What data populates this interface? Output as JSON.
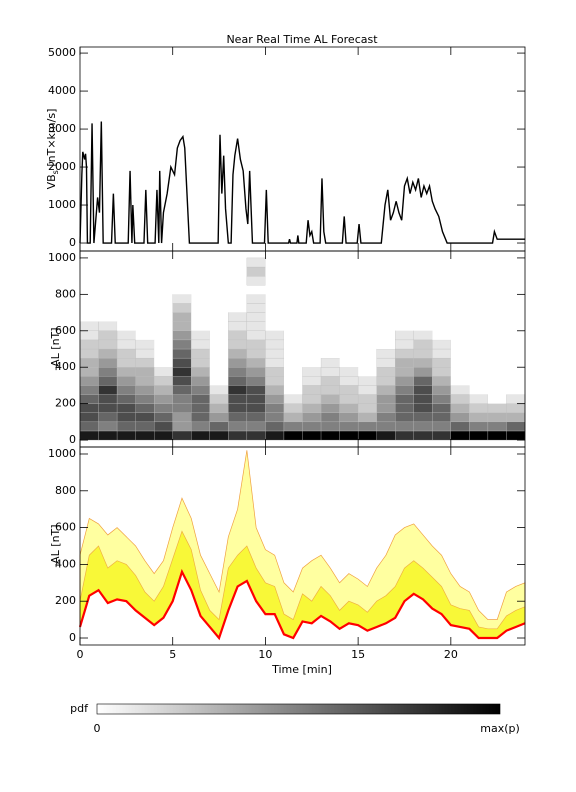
{
  "chart_data": [
    {
      "type": "line",
      "title": "Near Real Time AL Forecast",
      "ylabel": [
        "VB",
        "s",
        " [nT×km/s]"
      ],
      "color": "#000000",
      "xlim": [
        0,
        24
      ],
      "xticks": [
        0,
        5,
        10,
        15,
        20
      ],
      "ylim": [
        -210,
        5160
      ],
      "yticks": [
        0,
        1000,
        2000,
        3000,
        4000,
        5000
      ],
      "x": [
        0,
        0.1,
        0.15,
        0.25,
        0.3,
        0.35,
        0.4,
        0.55,
        0.65,
        0.75,
        0.85,
        0.95,
        1.05,
        1.15,
        1.25,
        1.7,
        1.8,
        1.9,
        2.6,
        2.7,
        2.8,
        2.85,
        2.95,
        3.45,
        3.55,
        3.65,
        4.05,
        4.15,
        4.25,
        4.3,
        4.4,
        4.5,
        4.7,
        4.9,
        5.1,
        5.25,
        5.4,
        5.55,
        5.65,
        5.75,
        5.9,
        7.45,
        7.55,
        7.65,
        7.75,
        7.85,
        8.0,
        8.15,
        8.25,
        8.35,
        8.5,
        8.65,
        8.8,
        8.95,
        9.05,
        9.15,
        9.3,
        9.95,
        10.05,
        10.15,
        11.25,
        11.3,
        11.35,
        11.7,
        11.75,
        11.8,
        12.2,
        12.3,
        12.4,
        12.5,
        12.6,
        12.95,
        13.05,
        13.15,
        13.25,
        14.15,
        14.25,
        14.35,
        14.95,
        15.05,
        15.15,
        16.25,
        16.45,
        16.6,
        16.75,
        16.9,
        17.05,
        17.2,
        17.35,
        17.5,
        17.65,
        17.8,
        17.95,
        18.1,
        18.25,
        18.4,
        18.55,
        18.7,
        18.85,
        19.0,
        19.15,
        19.35,
        19.55,
        19.8,
        22.25,
        22.35,
        22.5,
        24
      ],
      "values": [
        0,
        1800,
        2400,
        2200,
        2350,
        2000,
        0,
        0,
        3150,
        0,
        600,
        1200,
        800,
        3200,
        0,
        0,
        1300,
        0,
        0,
        1900,
        0,
        1000,
        0,
        0,
        1400,
        0,
        0,
        1400,
        0,
        1900,
        0,
        800,
        1300,
        2000,
        1800,
        2500,
        2700,
        2800,
        2500,
        1500,
        0,
        0,
        2850,
        1300,
        2300,
        900,
        0,
        0,
        1800,
        2300,
        2750,
        2200,
        1900,
        900,
        500,
        1900,
        0,
        0,
        1400,
        0,
        0,
        100,
        0,
        0,
        200,
        0,
        0,
        600,
        200,
        300,
        0,
        0,
        1700,
        300,
        0,
        0,
        700,
        0,
        0,
        500,
        0,
        0,
        1000,
        1400,
        600,
        800,
        1100,
        800,
        600,
        1500,
        1700,
        1300,
        1600,
        1400,
        1700,
        1200,
        1500,
        1300,
        1500,
        1100,
        900,
        700,
        300,
        0,
        0,
        300,
        100,
        100
      ]
    },
    {
      "type": "heatmap",
      "ylabel": "-AL [nT]",
      "xlim": [
        0,
        24
      ],
      "xticks": [
        0,
        5,
        10,
        15,
        20
      ],
      "ylim": [
        -38,
        1038
      ],
      "yticks": [
        0,
        200,
        400,
        600,
        800,
        1000
      ],
      "time_bins": [
        0,
        1,
        2,
        3,
        4,
        5,
        6,
        7,
        8,
        9,
        10,
        11,
        12,
        13,
        14,
        15,
        16,
        17,
        18,
        19,
        20,
        21,
        22,
        23,
        24
      ],
      "al_bins": [
        0,
        50,
        100,
        150,
        200,
        250,
        300,
        350,
        400,
        450,
        500,
        550,
        600,
        650,
        700,
        750,
        800,
        850,
        900,
        950,
        1000
      ],
      "pdf": [
        [
          0.9,
          0.6,
          0.7,
          0.7,
          0.6,
          0.5,
          0.4,
          0.3,
          0.3,
          0.2,
          0.2,
          0.1,
          0.1,
          0,
          0,
          0,
          0,
          0,
          0,
          0
        ],
        [
          0.9,
          0.5,
          0.6,
          0.7,
          0.7,
          0.8,
          0.6,
          0.5,
          0.4,
          0.3,
          0.2,
          0.2,
          0.1,
          0,
          0,
          0,
          0,
          0,
          0,
          0
        ],
        [
          0.9,
          0.6,
          0.7,
          0.7,
          0.6,
          0.5,
          0.4,
          0.3,
          0.2,
          0.2,
          0.1,
          0.1,
          0,
          0,
          0,
          0,
          0,
          0,
          0,
          0
        ],
        [
          0.9,
          0.6,
          0.7,
          0.6,
          0.5,
          0.4,
          0.3,
          0.3,
          0.2,
          0.1,
          0.1,
          0,
          0,
          0,
          0,
          0,
          0,
          0,
          0,
          0
        ],
        [
          0.9,
          0.7,
          0.6,
          0.5,
          0.4,
          0.3,
          0.2,
          0.1,
          0,
          0,
          0,
          0,
          0,
          0,
          0,
          0,
          0,
          0,
          0,
          0
        ],
        [
          0.8,
          0.4,
          0.4,
          0.5,
          0.5,
          0.6,
          0.7,
          0.8,
          0.7,
          0.6,
          0.5,
          0.4,
          0.3,
          0.3,
          0.2,
          0.1,
          0,
          0,
          0,
          0
        ],
        [
          0.9,
          0.5,
          0.6,
          0.6,
          0.6,
          0.5,
          0.4,
          0.3,
          0.2,
          0.2,
          0.1,
          0.1,
          0,
          0,
          0,
          0,
          0,
          0,
          0,
          0
        ],
        [
          0.9,
          0.6,
          0.4,
          0.3,
          0.2,
          0.1,
          0,
          0,
          0,
          0,
          0,
          0,
          0,
          0,
          0,
          0,
          0,
          0,
          0,
          0
        ],
        [
          0.8,
          0.5,
          0.6,
          0.7,
          0.7,
          0.8,
          0.6,
          0.5,
          0.4,
          0.3,
          0.2,
          0.2,
          0.1,
          0.1,
          0,
          0,
          0,
          0,
          0,
          0
        ],
        [
          0.8,
          0.5,
          0.6,
          0.7,
          0.7,
          0.7,
          0.5,
          0.4,
          0.3,
          0.2,
          0.2,
          0.1,
          0.1,
          0.1,
          0.1,
          0.1,
          0,
          0.1,
          0.2,
          0.1
        ],
        [
          0.9,
          0.6,
          0.5,
          0.5,
          0.4,
          0.3,
          0.2,
          0.2,
          0.1,
          0.1,
          0.1,
          0.1,
          0,
          0,
          0,
          0,
          0,
          0,
          0,
          0
        ],
        [
          1,
          0.5,
          0.3,
          0.2,
          0.1,
          0,
          0,
          0,
          0,
          0,
          0,
          0,
          0,
          0,
          0,
          0,
          0,
          0,
          0,
          0
        ],
        [
          1,
          0.5,
          0.4,
          0.3,
          0.2,
          0.2,
          0.1,
          0.1,
          0,
          0,
          0,
          0,
          0,
          0,
          0,
          0,
          0,
          0,
          0,
          0
        ],
        [
          1,
          0.5,
          0.5,
          0.4,
          0.3,
          0.2,
          0.2,
          0.1,
          0.1,
          0,
          0,
          0,
          0,
          0,
          0,
          0,
          0,
          0,
          0,
          0
        ],
        [
          1,
          0.5,
          0.4,
          0.3,
          0.2,
          0.2,
          0.1,
          0.1,
          0,
          0,
          0,
          0,
          0,
          0,
          0,
          0,
          0,
          0,
          0,
          0
        ],
        [
          1,
          0.5,
          0.3,
          0.2,
          0.2,
          0.1,
          0.1,
          0,
          0,
          0,
          0,
          0,
          0,
          0,
          0,
          0,
          0,
          0,
          0,
          0
        ],
        [
          0.9,
          0.5,
          0.5,
          0.4,
          0.4,
          0.3,
          0.2,
          0.2,
          0.1,
          0.1,
          0,
          0,
          0,
          0,
          0,
          0,
          0,
          0,
          0,
          0
        ],
        [
          0.8,
          0.5,
          0.6,
          0.6,
          0.6,
          0.5,
          0.4,
          0.3,
          0.3,
          0.2,
          0.1,
          0.1,
          0,
          0,
          0,
          0,
          0,
          0,
          0,
          0
        ],
        [
          0.8,
          0.5,
          0.6,
          0.7,
          0.7,
          0.7,
          0.6,
          0.4,
          0.3,
          0.2,
          0.2,
          0.1,
          0,
          0,
          0,
          0,
          0,
          0,
          0,
          0
        ],
        [
          0.8,
          0.5,
          0.6,
          0.6,
          0.5,
          0.4,
          0.3,
          0.2,
          0.2,
          0.1,
          0.1,
          0,
          0,
          0,
          0,
          0,
          0,
          0,
          0,
          0
        ],
        [
          1,
          0.6,
          0.4,
          0.3,
          0.2,
          0.1,
          0,
          0,
          0,
          0,
          0,
          0,
          0,
          0,
          0,
          0,
          0,
          0,
          0,
          0
        ],
        [
          1,
          0.5,
          0.3,
          0.2,
          0.1,
          0,
          0,
          0,
          0,
          0,
          0,
          0,
          0,
          0,
          0,
          0,
          0,
          0,
          0,
          0
        ],
        [
          1,
          0.5,
          0.3,
          0.2,
          0,
          0,
          0,
          0,
          0,
          0,
          0,
          0,
          0,
          0,
          0,
          0,
          0,
          0,
          0,
          0
        ],
        [
          1,
          0.6,
          0.3,
          0.2,
          0.1,
          0,
          0,
          0,
          0,
          0,
          0,
          0,
          0,
          0,
          0,
          0,
          0,
          0,
          0,
          0
        ]
      ]
    },
    {
      "type": "band",
      "ylabel": "-AL [nT]",
      "xlabel": "Time [min]",
      "xlim": [
        0,
        24
      ],
      "xticks": [
        0,
        5,
        10,
        15,
        20
      ],
      "ylim": [
        -38,
        1038
      ],
      "yticks": [
        0,
        200,
        400,
        600,
        800,
        1000
      ],
      "x": [
        0,
        0.5,
        1,
        1.5,
        2,
        2.5,
        3,
        3.5,
        4,
        4.5,
        5,
        5.5,
        6,
        6.5,
        7,
        7.5,
        8,
        8.5,
        9,
        9.5,
        10,
        10.5,
        11,
        11.5,
        12,
        12.5,
        13,
        13.5,
        14,
        14.5,
        15,
        15.5,
        16,
        16.5,
        17,
        17.5,
        18,
        18.5,
        19,
        19.5,
        20,
        20.5,
        21,
        21.5,
        22,
        22.5,
        23,
        23.5,
        24
      ],
      "bands": [
        {
          "color": "#ffffa0",
          "stroke": "#f0a040",
          "values": [
            450,
            650,
            620,
            560,
            600,
            550,
            500,
            420,
            350,
            420,
            600,
            760,
            650,
            450,
            350,
            250,
            550,
            700,
            1020,
            600,
            480,
            450,
            300,
            250,
            380,
            420,
            450,
            380,
            300,
            350,
            320,
            280,
            380,
            450,
            560,
            600,
            620,
            560,
            500,
            450,
            350,
            280,
            250,
            150,
            100,
            100,
            250,
            280,
            300
          ]
        },
        {
          "color": "#f8f838",
          "stroke": "#f0b040",
          "values": [
            200,
            450,
            500,
            380,
            420,
            400,
            340,
            250,
            200,
            280,
            430,
            580,
            480,
            260,
            150,
            100,
            380,
            450,
            500,
            380,
            300,
            280,
            130,
            100,
            240,
            200,
            280,
            230,
            150,
            200,
            180,
            140,
            200,
            230,
            280,
            380,
            420,
            380,
            330,
            280,
            180,
            160,
            150,
            60,
            50,
            50,
            120,
            150,
            170
          ]
        }
      ],
      "median": {
        "color": "#ff0000",
        "values": [
          60,
          230,
          260,
          190,
          210,
          200,
          150,
          110,
          70,
          110,
          200,
          360,
          260,
          120,
          60,
          0,
          150,
          280,
          310,
          200,
          130,
          130,
          20,
          0,
          90,
          80,
          120,
          90,
          50,
          80,
          70,
          40,
          60,
          80,
          110,
          200,
          240,
          210,
          160,
          130,
          70,
          60,
          50,
          0,
          0,
          0,
          40,
          60,
          80
        ]
      }
    }
  ],
  "colorbar": {
    "label": "pdf",
    "min_label": "0",
    "max_label": "max(p)"
  }
}
